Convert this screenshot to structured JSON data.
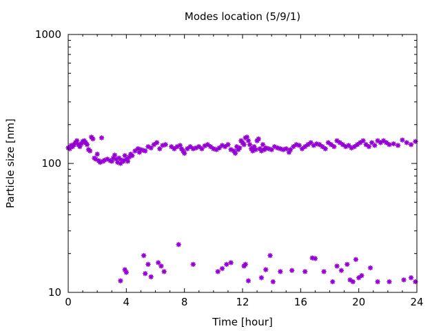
{
  "chart_data": {
    "type": "scatter",
    "title": "Modes location (5/9/1)",
    "xlabel": "Time [hour]",
    "ylabel": "Particle size [nm]",
    "xlim": [
      0,
      24
    ],
    "ylim": [
      10,
      1000
    ],
    "yscale": "log",
    "grid": false,
    "legend": "none",
    "marker_color": "#9400d3",
    "x_ticks": [
      0,
      4,
      8,
      12,
      16,
      20,
      24
    ],
    "x_tick_labels": [
      "0",
      "4",
      "8",
      "12",
      "16",
      "20",
      "24"
    ],
    "y_ticks": [
      10,
      100,
      1000
    ],
    "y_tick_labels": [
      "10",
      "100",
      "1000"
    ],
    "series": [
      {
        "points": [
          [
            0.0,
            132
          ],
          [
            0.1,
            130
          ],
          [
            0.2,
            138
          ],
          [
            0.3,
            135
          ],
          [
            0.4,
            140
          ],
          [
            0.5,
            145
          ],
          [
            0.6,
            150
          ],
          [
            0.7,
            140
          ],
          [
            0.8,
            135
          ],
          [
            0.9,
            142
          ],
          [
            1.0,
            148
          ],
          [
            1.1,
            150
          ],
          [
            1.2,
            145
          ],
          [
            1.3,
            140
          ],
          [
            1.4,
            128
          ],
          [
            1.5,
            125
          ],
          [
            1.6,
            160
          ],
          [
            1.7,
            155
          ],
          [
            1.8,
            110
          ],
          [
            1.9,
            108
          ],
          [
            2.0,
            118
          ],
          [
            2.1,
            105
          ],
          [
            2.2,
            102
          ],
          [
            2.3,
            158
          ],
          [
            2.4,
            104
          ],
          [
            2.5,
            106
          ],
          [
            2.7,
            108
          ],
          [
            2.9,
            105
          ],
          [
            3.0,
            104
          ],
          [
            3.1,
            110
          ],
          [
            3.2,
            116
          ],
          [
            3.3,
            108
          ],
          [
            3.4,
            102
          ],
          [
            3.5,
            110
          ],
          [
            3.6,
            100
          ],
          [
            3.7,
            106
          ],
          [
            3.8,
            104
          ],
          [
            3.9,
            115
          ],
          [
            4.0,
            108
          ],
          [
            4.1,
            104
          ],
          [
            4.2,
            112
          ],
          [
            4.3,
            118
          ],
          [
            4.4,
            115
          ],
          [
            4.6,
            125
          ],
          [
            4.8,
            130
          ],
          [
            4.9,
            122
          ],
          [
            5.0,
            128
          ],
          [
            5.2,
            126
          ],
          [
            5.3,
            125
          ],
          [
            5.5,
            135
          ],
          [
            5.7,
            132
          ],
          [
            5.9,
            140
          ],
          [
            6.1,
            145
          ],
          [
            6.3,
            130
          ],
          [
            6.5,
            138
          ],
          [
            6.7,
            140
          ],
          [
            7.1,
            135
          ],
          [
            7.3,
            130
          ],
          [
            7.5,
            135
          ],
          [
            7.7,
            138
          ],
          [
            7.8,
            130
          ],
          [
            7.9,
            125
          ],
          [
            8.0,
            120
          ],
          [
            8.2,
            130
          ],
          [
            8.4,
            135
          ],
          [
            8.6,
            130
          ],
          [
            8.8,
            132
          ],
          [
            9.0,
            135
          ],
          [
            9.2,
            130
          ],
          [
            9.4,
            137
          ],
          [
            9.6,
            140
          ],
          [
            9.8,
            135
          ],
          [
            10.0,
            130
          ],
          [
            10.2,
            128
          ],
          [
            10.4,
            132
          ],
          [
            10.6,
            138
          ],
          [
            10.8,
            135
          ],
          [
            11.0,
            140
          ],
          [
            11.2,
            128
          ],
          [
            11.4,
            125
          ],
          [
            11.5,
            120
          ],
          [
            11.6,
            135
          ],
          [
            11.7,
            128
          ],
          [
            11.8,
            132
          ],
          [
            11.9,
            150
          ],
          [
            12.0,
            145
          ],
          [
            12.1,
            140
          ],
          [
            12.2,
            158
          ],
          [
            12.3,
            160
          ],
          [
            12.4,
            150
          ],
          [
            12.5,
            140
          ],
          [
            12.6,
            130
          ],
          [
            12.7,
            125
          ],
          [
            12.8,
            135
          ],
          [
            12.9,
            128
          ],
          [
            13.0,
            150
          ],
          [
            13.1,
            155
          ],
          [
            13.2,
            130
          ],
          [
            13.3,
            125
          ],
          [
            13.4,
            140
          ],
          [
            13.5,
            128
          ],
          [
            13.6,
            132
          ],
          [
            13.8,
            130
          ],
          [
            14.0,
            128
          ],
          [
            14.2,
            135
          ],
          [
            14.4,
            132
          ],
          [
            14.6,
            130
          ],
          [
            14.8,
            128
          ],
          [
            15.0,
            130
          ],
          [
            15.2,
            122
          ],
          [
            15.3,
            128
          ],
          [
            15.5,
            135
          ],
          [
            15.7,
            140
          ],
          [
            15.9,
            138
          ],
          [
            16.1,
            130
          ],
          [
            16.3,
            135
          ],
          [
            16.5,
            140
          ],
          [
            16.7,
            145
          ],
          [
            16.9,
            138
          ],
          [
            17.1,
            142
          ],
          [
            17.3,
            140
          ],
          [
            17.5,
            135
          ],
          [
            17.7,
            130
          ],
          [
            17.9,
            145
          ],
          [
            18.1,
            140
          ],
          [
            18.3,
            135
          ],
          [
            18.5,
            150
          ],
          [
            18.7,
            145
          ],
          [
            18.9,
            140
          ],
          [
            19.1,
            135
          ],
          [
            19.3,
            138
          ],
          [
            19.5,
            132
          ],
          [
            19.7,
            135
          ],
          [
            19.9,
            140
          ],
          [
            20.1,
            145
          ],
          [
            20.3,
            150
          ],
          [
            20.5,
            140
          ],
          [
            20.7,
            135
          ],
          [
            20.9,
            145
          ],
          [
            21.1,
            138
          ],
          [
            21.3,
            150
          ],
          [
            21.5,
            145
          ],
          [
            21.7,
            150
          ],
          [
            21.9,
            145
          ],
          [
            22.1,
            140
          ],
          [
            22.4,
            142
          ],
          [
            22.7,
            138
          ],
          [
            23.0,
            152
          ],
          [
            23.3,
            145
          ],
          [
            23.6,
            140
          ],
          [
            23.9,
            148
          ],
          [
            3.6,
            12.3
          ],
          [
            3.9,
            15.0
          ],
          [
            4.0,
            14.3
          ],
          [
            5.2,
            19.3
          ],
          [
            5.3,
            14.0
          ],
          [
            5.5,
            16.5
          ],
          [
            5.7,
            13.2
          ],
          [
            6.2,
            17.0
          ],
          [
            6.4,
            16.0
          ],
          [
            6.6,
            14.5
          ],
          [
            7.6,
            23.5
          ],
          [
            8.6,
            16.5
          ],
          [
            10.3,
            14.5
          ],
          [
            10.6,
            15.3
          ],
          [
            10.9,
            16.5
          ],
          [
            11.2,
            17.0
          ],
          [
            12.1,
            16.0
          ],
          [
            12.2,
            16.5
          ],
          [
            12.4,
            12.3
          ],
          [
            13.3,
            13.0
          ],
          [
            13.6,
            15.0
          ],
          [
            13.9,
            19.3
          ],
          [
            14.1,
            12.1
          ],
          [
            14.6,
            14.5
          ],
          [
            15.4,
            14.8
          ],
          [
            16.3,
            14.5
          ],
          [
            16.8,
            18.5
          ],
          [
            17.0,
            18.3
          ],
          [
            17.6,
            14.5
          ],
          [
            18.2,
            12.1
          ],
          [
            18.5,
            16.0
          ],
          [
            18.8,
            14.8
          ],
          [
            19.2,
            16.5
          ],
          [
            19.4,
            12.5
          ],
          [
            19.6,
            12.1
          ],
          [
            19.8,
            18.0
          ],
          [
            20.0,
            13.0
          ],
          [
            20.2,
            13.5
          ],
          [
            20.8,
            15.5
          ],
          [
            21.3,
            12.1
          ],
          [
            22.1,
            12.1
          ],
          [
            23.1,
            12.5
          ],
          [
            23.6,
            13.0
          ],
          [
            23.9,
            12.1
          ]
        ]
      }
    ]
  }
}
